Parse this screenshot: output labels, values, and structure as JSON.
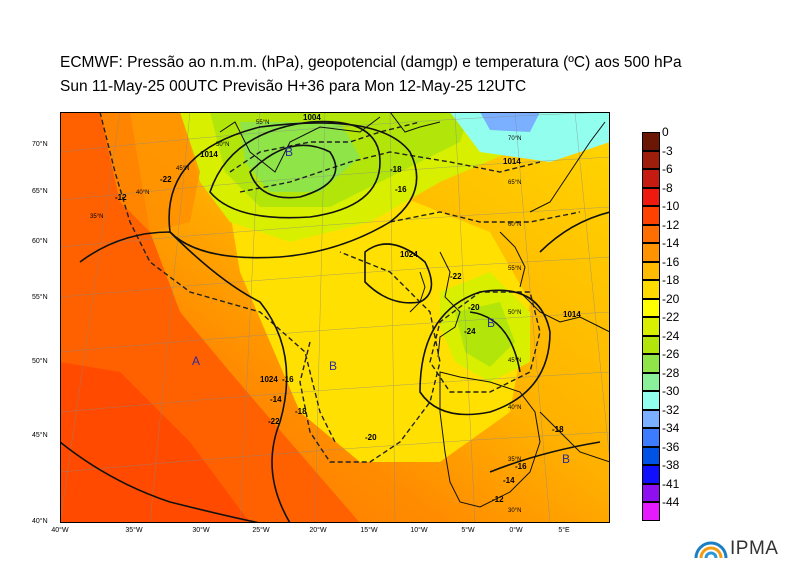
{
  "title": {
    "line1": "ECMWF:  Pressão ao n.m.m. (hPa), geopotencial (damgp) e temperatura (ºC) aos 500 hPa",
    "line2": "Sun 11-May-25 00UTC Previsão H+36 para Mon 12-May-25 12UTC"
  },
  "map": {
    "lat_labels": [
      "70°N",
      "65°N",
      "60°N",
      "55°N",
      "50°N",
      "45°N",
      "40°N"
    ],
    "lon_labels": [
      "40°W",
      "35°W",
      "30°W",
      "25°W",
      "20°W",
      "15°W",
      "10°W",
      "5°W",
      "0°W",
      "5°E"
    ],
    "grid_labels": [
      "55°N",
      "50°N",
      "45°N",
      "40°N",
      "70°N",
      "65°N",
      "60°N",
      "55°N",
      "50°N",
      "45°N",
      "40°N",
      "35°N",
      "30°N",
      "35°N"
    ],
    "temperature_labels": [
      "-12",
      "-16",
      "-18",
      "-22",
      "-20",
      "-24",
      "-22",
      "-14",
      "-16",
      "-18",
      "-20",
      "-16",
      "-14",
      "-12",
      "-22",
      "-18"
    ],
    "isobar_labels": [
      "1024",
      "1024",
      "1014",
      "1014",
      "1004",
      "1014"
    ],
    "pressure_centers": [
      "A",
      "B",
      "B",
      "B",
      "B"
    ]
  },
  "legend": {
    "labels": [
      "0",
      "-3",
      "-6",
      "-8",
      "-10",
      "-12",
      "-14",
      "-16",
      "-18",
      "-20",
      "-22",
      "-24",
      "-26",
      "-28",
      "-30",
      "-32",
      "-34",
      "-36",
      "-38",
      "-41",
      "-44"
    ],
    "colors": [
      "#6b1706",
      "#9e1e0c",
      "#c61b10",
      "#ee1a10",
      "#ff4200",
      "#ff6e00",
      "#ff9400",
      "#ffbb00",
      "#ffda00",
      "#ffff00",
      "#d8f000",
      "#b2e60a",
      "#8fe448",
      "#8af09a",
      "#92ffee",
      "#7ab0ff",
      "#3e7cff",
      "#0052e6",
      "#1010ff",
      "#8e10f0",
      "#e61aff"
    ]
  },
  "logo": {
    "text": "IPMA"
  }
}
